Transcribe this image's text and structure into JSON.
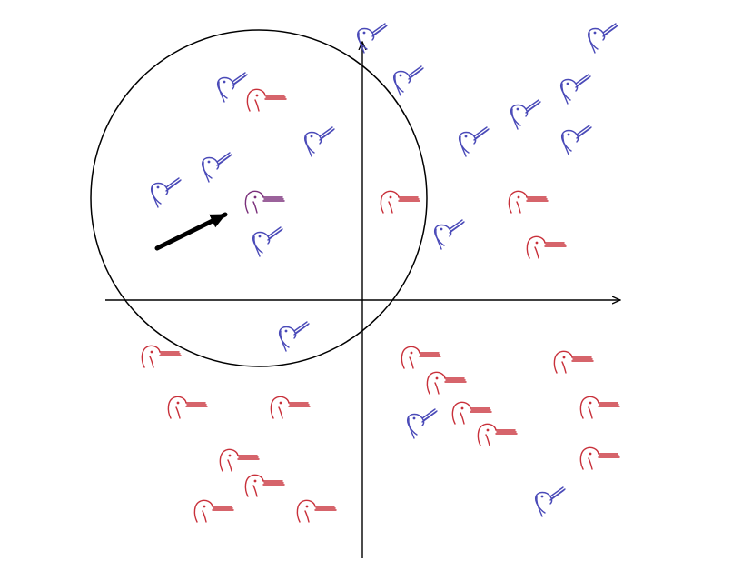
{
  "colors": {
    "blue": "#4a4ab8",
    "red": "#c8303a",
    "purple": "#7a2f7a",
    "ink": "#000000"
  },
  "icons": {
    "blue": "duck-facing-up-right-icon",
    "red": "duck-facing-right-icon",
    "query": "duck-ambiguous-query-icon"
  }
}
